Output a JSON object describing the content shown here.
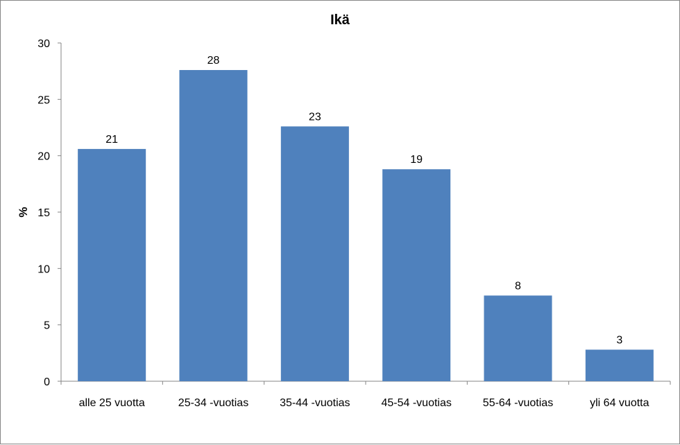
{
  "chart_data": {
    "type": "bar",
    "title": "Ikä",
    "xlabel": "",
    "ylabel": "%",
    "ylim": [
      0,
      30
    ],
    "yticks": [
      0,
      5,
      10,
      15,
      20,
      25,
      30
    ],
    "categories": [
      "alle 25 vuotta",
      "25-34 -vuotias",
      "35-44 -vuotias",
      "45-54 -vuotias",
      "55-64 -vuotias",
      "yli 64 vuotta"
    ],
    "values": [
      20.6,
      27.6,
      22.6,
      18.8,
      7.6,
      2.8
    ],
    "data_labels": [
      "21",
      "28",
      "23",
      "19",
      "8",
      "3"
    ],
    "bar_color": "#4F81BD",
    "grid": false,
    "legend": "none"
  }
}
